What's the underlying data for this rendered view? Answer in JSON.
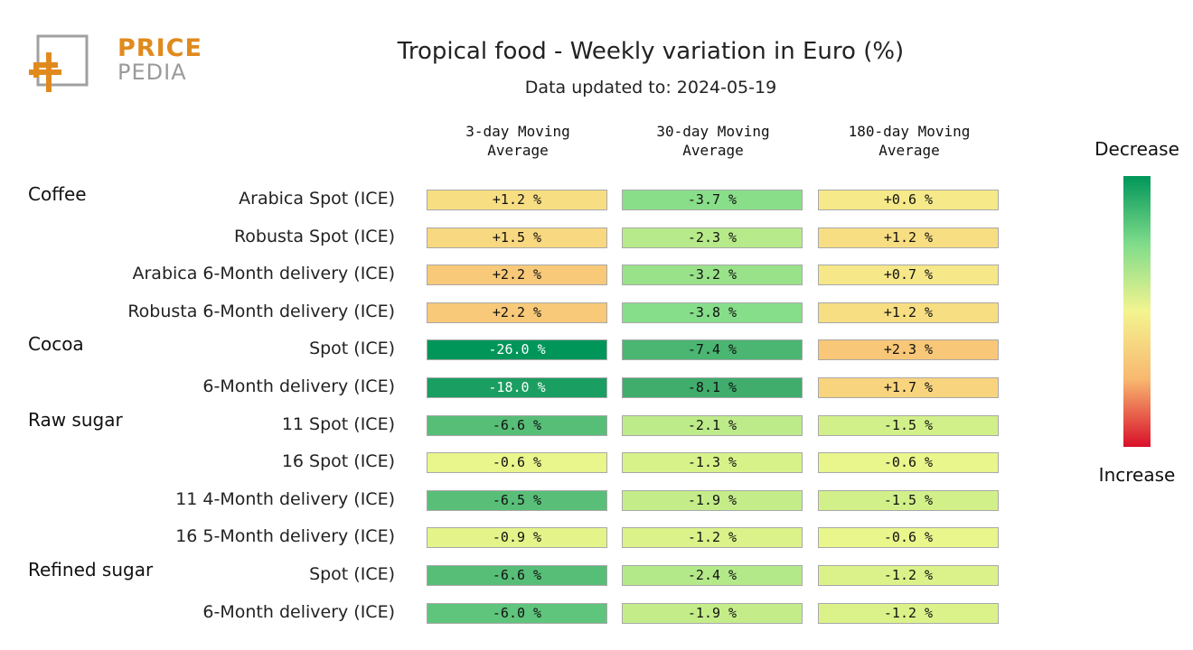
{
  "logo": {
    "line1": "PRICE",
    "line2": "PEDIA"
  },
  "chart_data": {
    "type": "table",
    "title": "Tropical food - Weekly variation in Euro (%)",
    "subtitle": "Data updated to: 2024-05-19",
    "columns": [
      "3-day Moving Average",
      "30-day Moving Average",
      "180-day Moving Average"
    ],
    "column_lines": [
      [
        "3-day Moving",
        "Average"
      ],
      [
        "30-day Moving",
        "Average"
      ],
      [
        "180-day Moving",
        "Average"
      ]
    ],
    "groups": [
      {
        "name": "Coffee",
        "rows": [
          {
            "label": "Arabica Spot (ICE)",
            "values": [
              "+1.2 %",
              "-3.7 %",
              "+0.6 %"
            ],
            "num": [
              1.2,
              -3.7,
              0.6
            ]
          },
          {
            "label": "Robusta Spot (ICE)",
            "values": [
              "+1.5 %",
              "-2.3 %",
              "+1.2 %"
            ],
            "num": [
              1.5,
              -2.3,
              1.2
            ]
          },
          {
            "label": "Arabica 6-Month delivery (ICE)",
            "values": [
              "+2.2 %",
              "-3.2 %",
              "+0.7 %"
            ],
            "num": [
              2.2,
              -3.2,
              0.7
            ]
          },
          {
            "label": "Robusta 6-Month delivery (ICE)",
            "values": [
              "+2.2 %",
              "-3.8 %",
              "+1.2 %"
            ],
            "num": [
              2.2,
              -3.8,
              1.2
            ]
          }
        ]
      },
      {
        "name": "Cocoa",
        "rows": [
          {
            "label": "Spot (ICE)",
            "values": [
              "-26.0 %",
              "-7.4 %",
              "+2.3 %"
            ],
            "num": [
              -26.0,
              -7.4,
              2.3
            ]
          },
          {
            "label": "6-Month delivery (ICE)",
            "values": [
              "-18.0 %",
              "-8.1 %",
              "+1.7 %"
            ],
            "num": [
              -18.0,
              -8.1,
              1.7
            ]
          }
        ]
      },
      {
        "name": "Raw sugar",
        "rows": [
          {
            "label": "11 Spot (ICE)",
            "values": [
              "-6.6 %",
              "-2.1 %",
              "-1.5 %"
            ],
            "num": [
              -6.6,
              -2.1,
              -1.5
            ]
          },
          {
            "label": "16 Spot (ICE)",
            "values": [
              "-0.6 %",
              "-1.3 %",
              "-0.6 %"
            ],
            "num": [
              -0.6,
              -1.3,
              -0.6
            ]
          },
          {
            "label": "11 4-Month delivery (ICE)",
            "values": [
              "-6.5 %",
              "-1.9 %",
              "-1.5 %"
            ],
            "num": [
              -6.5,
              -1.9,
              -1.5
            ]
          },
          {
            "label": "16 5-Month delivery (ICE)",
            "values": [
              "-0.9 %",
              "-1.2 %",
              "-0.6 %"
            ],
            "num": [
              -0.9,
              -1.2,
              -0.6
            ]
          }
        ]
      },
      {
        "name": "Refined sugar",
        "rows": [
          {
            "label": "Spot (ICE)",
            "values": [
              "-6.6 %",
              "-2.4 %",
              "-1.2 %"
            ],
            "num": [
              -6.6,
              -2.4,
              -1.2
            ]
          },
          {
            "label": "6-Month delivery (ICE)",
            "values": [
              "-6.0 %",
              "-1.9 %",
              "-1.2 %"
            ],
            "num": [
              -6.0,
              -1.9,
              -1.2
            ]
          }
        ]
      }
    ],
    "legend": {
      "top": "Decrease",
      "bottom": "Increase"
    },
    "colors": {
      "strong_decrease": "#00965a",
      "decrease": "#7fdc8a",
      "neutral": "#f4f490",
      "increase": "#f8b870",
      "strong_increase": "#d9102a"
    }
  }
}
